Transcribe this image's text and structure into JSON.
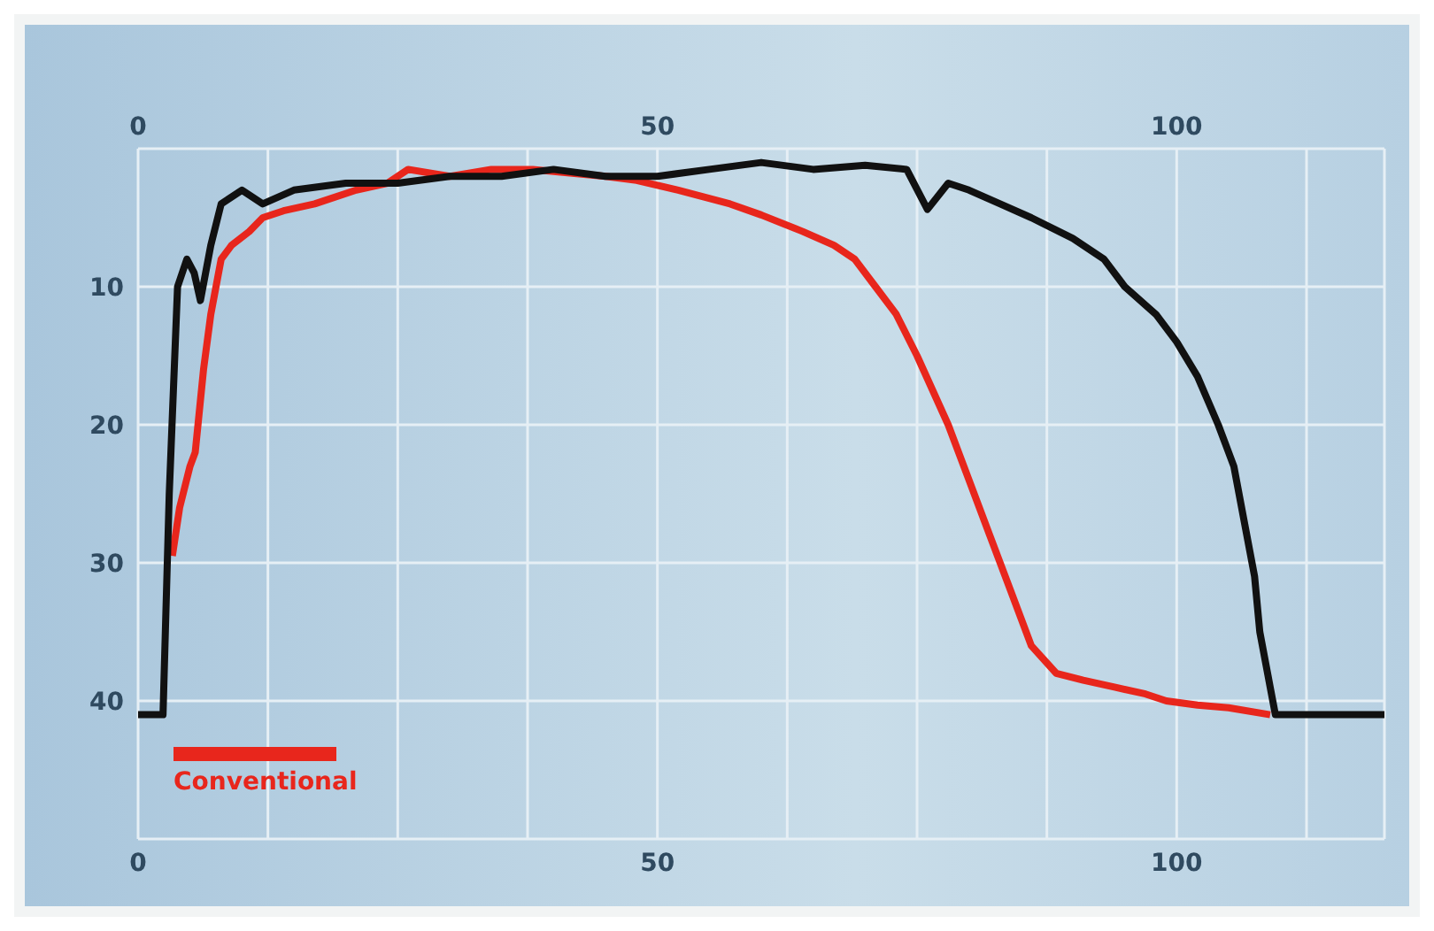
{
  "chart_data": {
    "type": "line",
    "series": [
      {
        "name": "Conventional",
        "color": "#e8261c",
        "x": [
          3.3,
          4,
          5,
          5.5,
          6.3,
          7,
          8,
          9,
          10.7,
          12,
          14,
          17,
          21,
          24,
          26,
          30,
          34,
          38,
          42,
          45,
          48,
          52,
          57,
          60,
          64,
          67,
          69,
          71,
          73,
          75,
          78,
          80,
          82,
          84,
          86,
          88.4,
          91,
          94,
          97,
          99,
          102,
          105,
          109
        ],
        "values": [
          29.5,
          26,
          23,
          22,
          16,
          12,
          8,
          7,
          6,
          5,
          4.5,
          4,
          3,
          2.5,
          1.5,
          2,
          1.5,
          1.5,
          1.8,
          2,
          2.3,
          3,
          4,
          4.8,
          6,
          7,
          8,
          10,
          12,
          15,
          20,
          24,
          28,
          32,
          36,
          38,
          38.5,
          39,
          39.5,
          40,
          40.3,
          40.5,
          41
        ]
      },
      {
        "color": "#111111",
        "x": [
          0,
          1,
          2.4,
          3,
          3.8,
          4.7,
          5.4,
          6,
          7,
          8,
          10,
          12,
          15,
          20,
          25,
          30,
          35,
          40,
          45,
          50,
          55,
          60,
          65,
          70,
          74,
          76,
          78,
          80,
          83,
          86,
          90,
          93,
          95,
          98,
          100,
          102,
          104,
          105.5,
          106.5,
          107.5,
          108,
          109,
          109.5,
          112,
          116,
          120
        ],
        "values": [
          41,
          41,
          41,
          25,
          10,
          8,
          9,
          11,
          7,
          4,
          3,
          4,
          3,
          2.5,
          2.5,
          2,
          2,
          1.5,
          2,
          2,
          1.5,
          1,
          1.5,
          1.2,
          1.5,
          4.4,
          2.5,
          3,
          4,
          5,
          6.5,
          8,
          10,
          12,
          14,
          16.5,
          20,
          23,
          27,
          31,
          35,
          39,
          41,
          41,
          41,
          41
        ]
      }
    ],
    "xlim": [
      0,
      120
    ],
    "xticks": [
      0,
      {
        "value": 12.5,
        "label": null
      },
      {
        "value": 25,
        "label": null
      },
      {
        "value": 37.5,
        "label": null
      },
      50,
      {
        "value": 62.5,
        "label": null
      },
      {
        "value": 75,
        "label": null
      },
      {
        "value": 87.5,
        "label": null
      },
      100,
      {
        "value": 112.5,
        "label": null
      },
      {
        "value": 120,
        "label": null
      }
    ],
    "x2lim": [
      0,
      120
    ],
    "x2ticks": [
      0,
      50,
      100
    ],
    "ylim": [
      50,
      0
    ],
    "yticks": [
      {
        "value": 0,
        "label": null
      },
      10,
      20,
      30,
      40,
      {
        "value": 50,
        "label": null
      }
    ],
    "grid": true,
    "legend": "bottom left",
    "line_style": "solid",
    "marker": "none"
  }
}
